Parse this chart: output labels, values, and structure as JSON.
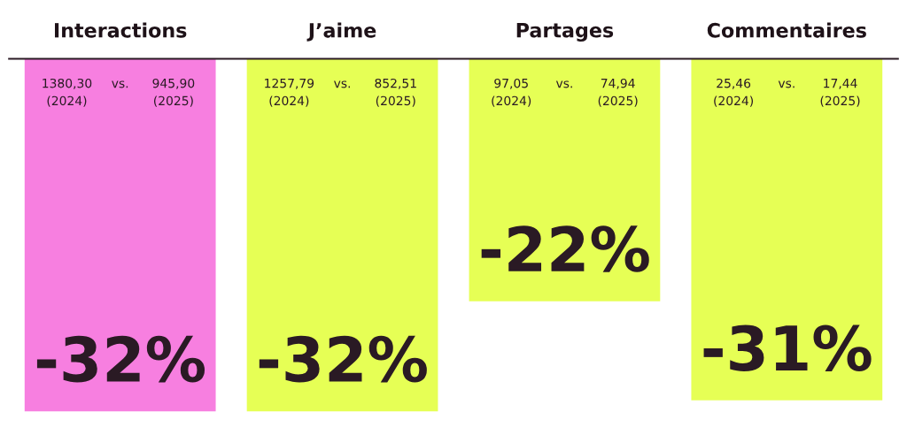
{
  "chart_data": {
    "type": "bar",
    "categories": [
      "Interactions",
      "J’aime",
      "Partages",
      "Commentaires"
    ],
    "values": [
      -32,
      -32,
      -22,
      -31
    ],
    "colors": [
      "#f77fe0",
      "#e6ff55",
      "#e6ff55",
      "#e6ff55"
    ],
    "value_labels": [
      "-32%",
      "-32%",
      "-22%",
      "-31%"
    ],
    "annotations": [
      "1380,30\n(2024)",
      "vs.",
      "945,90\n(2025)",
      "1257,79\n(2024)",
      "vs.",
      "852,51\n(2025)",
      "97,05\n(2024)",
      "vs.",
      "74,94\n(2025)",
      "25,46\n(2024)",
      "vs.",
      "17,44\n(2025)"
    ],
    "grid": false,
    "legend": false
  }
}
